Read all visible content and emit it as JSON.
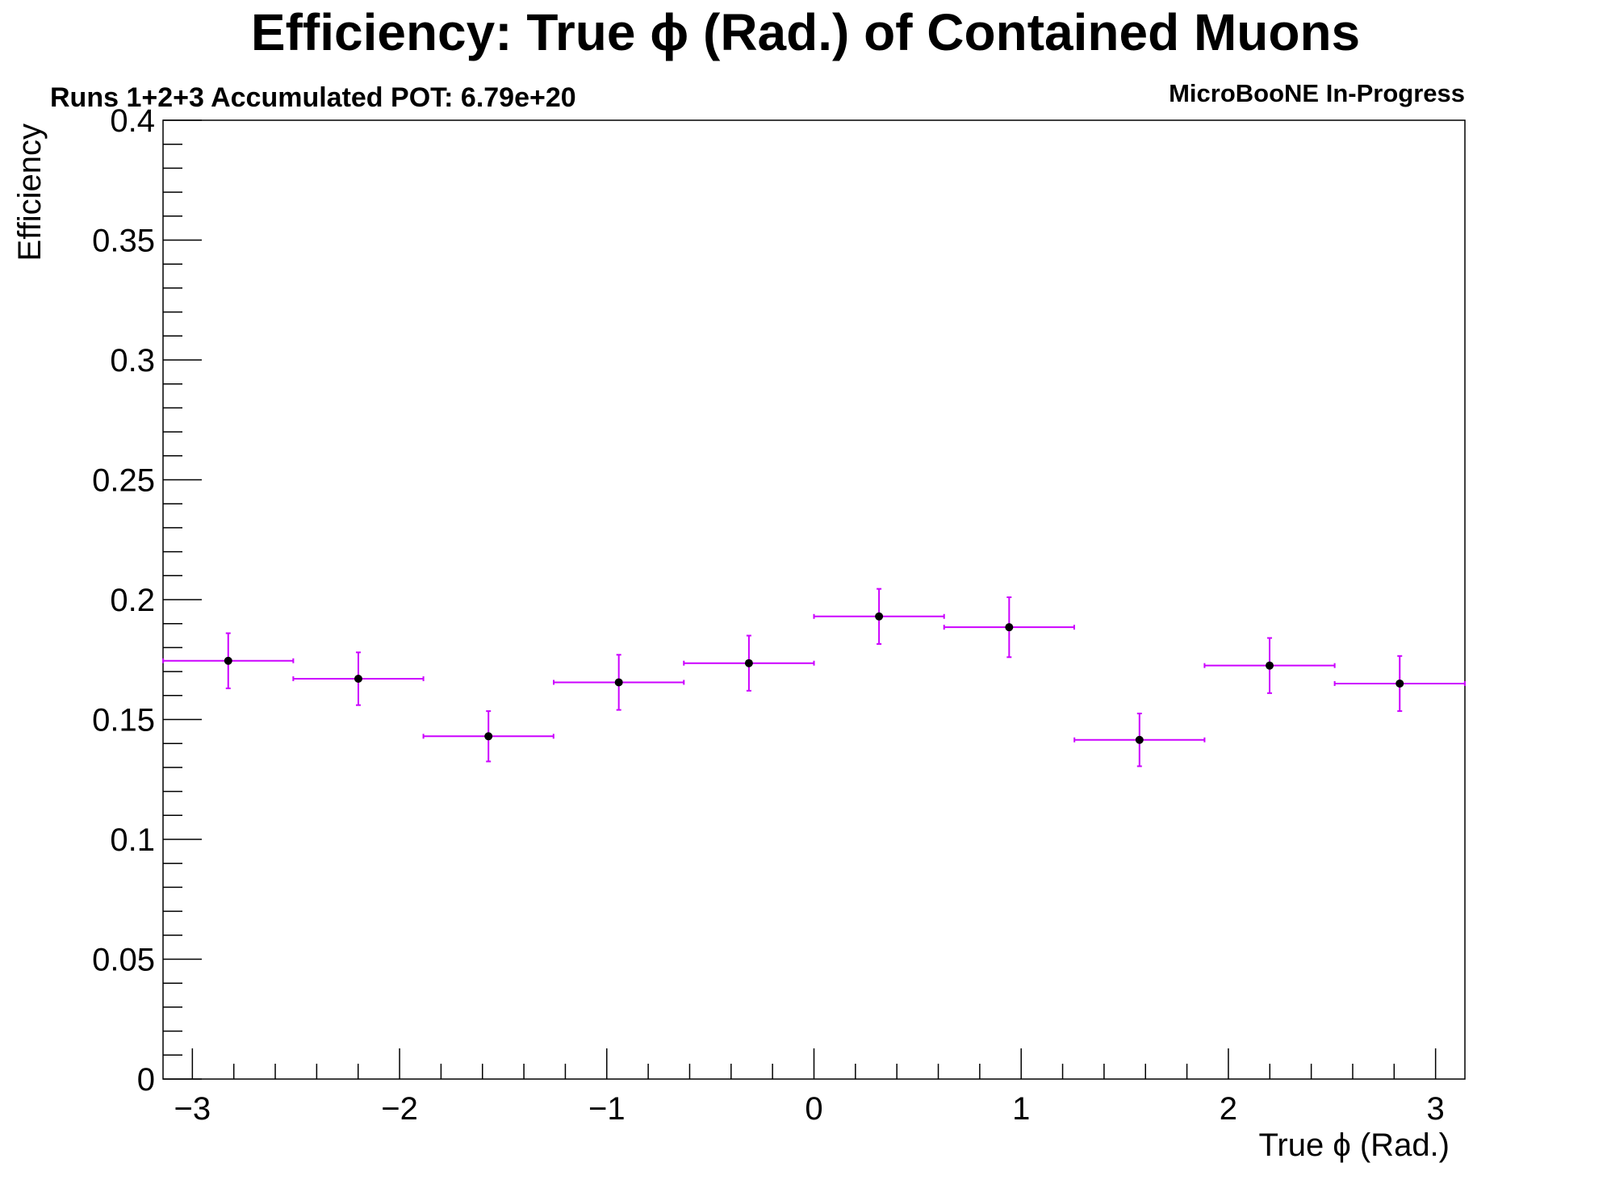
{
  "chart_data": {
    "type": "scatter",
    "title": "Efficiency: True  ϕ (Rad.) of Contained Muons",
    "subtitle": "Runs 1+2+3 Accumulated POT: 6.79e+20",
    "tag": "MicroBooNE In-Progress",
    "xlabel": "True ϕ (Rad.)",
    "ylabel": "Efficiency",
    "xlim": [
      -3.14159,
      3.14159
    ],
    "ylim": [
      0,
      0.4
    ],
    "grid": false,
    "x_ticks": [
      -3,
      -2,
      -1,
      0,
      1,
      2,
      3
    ],
    "x_tick_labels": [
      "−3",
      "−2",
      "−1",
      "0",
      "1",
      "2",
      "3"
    ],
    "y_ticks": [
      0,
      0.05,
      0.1,
      0.15,
      0.2,
      0.25,
      0.3,
      0.35,
      0.4
    ],
    "y_tick_labels": [
      "0",
      "0.05",
      "0.1",
      "0.15",
      "0.2",
      "0.25",
      "0.3",
      "0.35",
      "0.4"
    ],
    "series": [
      {
        "color": "#cc00ff",
        "marker_color": "#000000",
        "x": [
          -2.827,
          -2.199,
          -1.571,
          -0.942,
          -0.314,
          0.314,
          0.942,
          1.571,
          2.199,
          2.827
        ],
        "y": [
          0.1745,
          0.167,
          0.143,
          0.1655,
          0.1735,
          0.193,
          0.1885,
          0.1415,
          0.1725,
          0.165
        ],
        "x_err": [
          0.314,
          0.314,
          0.314,
          0.314,
          0.314,
          0.314,
          0.314,
          0.314,
          0.314,
          0.314
        ],
        "y_err": [
          0.0115,
          0.011,
          0.0105,
          0.0115,
          0.0115,
          0.0115,
          0.0125,
          0.011,
          0.0115,
          0.0115
        ]
      }
    ]
  }
}
